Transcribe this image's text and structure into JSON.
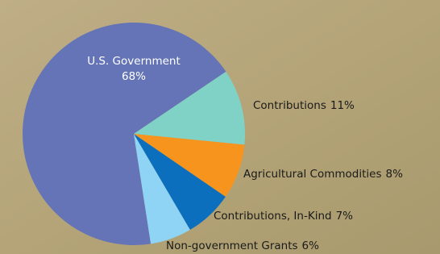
{
  "chart_data": {
    "type": "pie",
    "categories": [
      "U.S. Government",
      "Contributions",
      "Agricultural Commodities",
      "Contributions, In-Kind",
      "Non-government Grants"
    ],
    "values": [
      68,
      11,
      8,
      7,
      6
    ],
    "value_labels": [
      "68%",
      "11%",
      "8%",
      "7%",
      "6%"
    ],
    "colors": [
      "#6474b6",
      "#80d2c6",
      "#f7941e",
      "#0b6fbd",
      "#8fd4f5"
    ]
  }
}
